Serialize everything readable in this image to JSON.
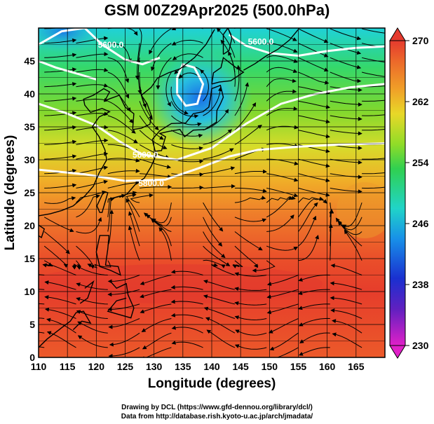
{
  "title": "GSM 00Z29Apr2025 (500.0hPa)",
  "xaxis": {
    "label": "Longitude (degrees)",
    "ticks": [
      110,
      115,
      120,
      125,
      130,
      135,
      140,
      145,
      150,
      155,
      160,
      165
    ],
    "range": [
      110,
      170
    ]
  },
  "yaxis": {
    "label": "Latitude  (degrees)",
    "ticks": [
      0,
      5,
      10,
      15,
      20,
      25,
      30,
      35,
      40,
      45
    ],
    "range": [
      0,
      50
    ]
  },
  "colorbar": {
    "ticks": [
      230,
      238,
      246,
      254,
      262,
      270
    ],
    "range": [
      230,
      270
    ],
    "units": ""
  },
  "contours": [
    {
      "label": "5800.0",
      "lon": 129.5,
      "lat": 26.0
    },
    {
      "label": "5600.0",
      "lon": 128.5,
      "lat": 30.3
    },
    {
      "label": "5600.0",
      "lon": 122.5,
      "lat": 47.0
    },
    {
      "label": "5600.0",
      "lon": 148.5,
      "lat": 47.5
    }
  ],
  "credits": {
    "line1": "Drawing by DCL (https://www.gfd-dennou.org/library/dcl/)",
    "line2": "Data from http://database.rish.kyoto-u.ac.jp/arch/jmadata/"
  },
  "colors": {
    "warm": "#e8372a",
    "orange": "#ef8a2a",
    "yellow": "#e9d82c",
    "green": "#5bd23c",
    "cyan": "#28d4c8",
    "blue": "#2080e0",
    "magenta": "#e020c0"
  }
}
